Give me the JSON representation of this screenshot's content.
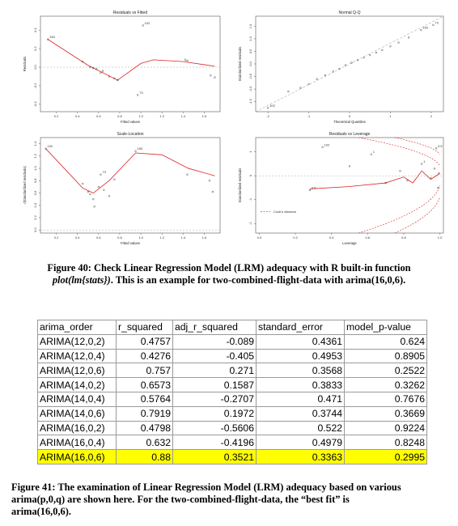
{
  "figure40": {
    "caption_lead": "Figure 40: Check Linear Regression Model (LRM) adequacy with R built-in function",
    "caption_formula": "plot(lm{stats})",
    "caption_tail": ". This is an example for two-combined-flight-data with arima(16,0,6)."
  },
  "chart_data": [
    {
      "type": "scatter",
      "title": "Residuals vs Fitted",
      "xlabel": "Fitted values",
      "ylabel": "Residuals",
      "xticks": [
        "0.2",
        "0.4",
        "0.6",
        "0.8",
        "1.0",
        "1.2",
        "1.4",
        "1.6"
      ],
      "yticks": [
        "-0.4",
        "-0.2",
        "0.0",
        "0.2",
        "0.4"
      ],
      "xlim": [
        0.05,
        1.75
      ],
      "ylim": [
        -0.48,
        0.55
      ],
      "point_labels": [
        "102",
        "150",
        "73"
      ],
      "points": [
        {
          "x": 0.12,
          "y": 0.3
        },
        {
          "x": 0.45,
          "y": 0.06
        },
        {
          "x": 0.52,
          "y": 0.0
        },
        {
          "x": 0.55,
          "y": -0.01
        },
        {
          "x": 0.58,
          "y": -0.02
        },
        {
          "x": 0.62,
          "y": -0.06
        },
        {
          "x": 0.64,
          "y": -0.04
        },
        {
          "x": 0.7,
          "y": -0.1
        },
        {
          "x": 0.75,
          "y": -0.12
        },
        {
          "x": 0.78,
          "y": -0.14
        },
        {
          "x": 0.97,
          "y": -0.3
        },
        {
          "x": 1.02,
          "y": 0.45
        },
        {
          "x": 1.42,
          "y": 0.08
        },
        {
          "x": 1.44,
          "y": 0.07
        },
        {
          "x": 1.66,
          "y": -0.09
        },
        {
          "x": 1.7,
          "y": -0.11
        }
      ],
      "smooth": [
        {
          "x": 0.12,
          "y": 0.3
        },
        {
          "x": 0.5,
          "y": 0.02
        },
        {
          "x": 0.78,
          "y": -0.14
        },
        {
          "x": 1.0,
          "y": 0.04
        },
        {
          "x": 1.12,
          "y": 0.08
        },
        {
          "x": 1.4,
          "y": 0.06
        },
        {
          "x": 1.7,
          "y": 0.01
        }
      ]
    },
    {
      "type": "scatter",
      "title": "Normal Q-Q",
      "xlabel": "Theoretical Quantiles",
      "ylabel": "Standardized residuals",
      "xticks": [
        "-2",
        "-1",
        "0",
        "1",
        "2"
      ],
      "yticks": [
        "-1.5",
        "-1.0",
        "-0.5",
        "0.0",
        "0.5",
        "1.0",
        "1.5"
      ],
      "xlim": [
        -2.3,
        2.3
      ],
      "ylim": [
        -1.9,
        1.9
      ],
      "point_labels": [
        "102",
        "73",
        "150"
      ],
      "points": [
        {
          "x": -2.0,
          "y": -1.75
        },
        {
          "x": -1.5,
          "y": -1.1
        },
        {
          "x": -1.2,
          "y": -0.95
        },
        {
          "x": -1.0,
          "y": -0.8
        },
        {
          "x": -0.8,
          "y": -0.6
        },
        {
          "x": -0.6,
          "y": -0.45
        },
        {
          "x": -0.4,
          "y": -0.3
        },
        {
          "x": -0.25,
          "y": -0.2
        },
        {
          "x": -0.1,
          "y": -0.05
        },
        {
          "x": 0.05,
          "y": 0.05
        },
        {
          "x": 0.2,
          "y": 0.15
        },
        {
          "x": 0.35,
          "y": 0.25
        },
        {
          "x": 0.5,
          "y": 0.35
        },
        {
          "x": 0.65,
          "y": 0.45
        },
        {
          "x": 0.8,
          "y": 0.55
        },
        {
          "x": 1.0,
          "y": 0.7
        },
        {
          "x": 1.2,
          "y": 0.85
        },
        {
          "x": 1.45,
          "y": 1.05
        },
        {
          "x": 1.75,
          "y": 1.35
        },
        {
          "x": 2.05,
          "y": 1.55
        }
      ],
      "reference_line": [
        {
          "x": -2.3,
          "y": -1.9
        },
        {
          "x": 2.3,
          "y": 1.9
        }
      ]
    },
    {
      "type": "scatter",
      "title": "Scale-Location",
      "xlabel": "Fitted values",
      "ylabel": "√|Standardized residuals|",
      "xticks": [
        "0.2",
        "0.4",
        "0.6",
        "0.8",
        "1.0",
        "1.2",
        "1.4",
        "1.6"
      ],
      "yticks": [
        "0.0",
        "0.2",
        "0.4",
        "0.6",
        "0.8",
        "1.0",
        "1.2",
        "1.4"
      ],
      "xlim": [
        0.05,
        1.75
      ],
      "ylim": [
        -0.05,
        1.5
      ],
      "point_labels": [
        "102",
        "150",
        "73"
      ],
      "points": [
        {
          "x": 0.1,
          "y": 1.32
        },
        {
          "x": 0.45,
          "y": 0.75
        },
        {
          "x": 0.5,
          "y": 0.62
        },
        {
          "x": 0.52,
          "y": 0.58
        },
        {
          "x": 0.55,
          "y": 0.5
        },
        {
          "x": 0.56,
          "y": 0.38
        },
        {
          "x": 0.6,
          "y": 0.7
        },
        {
          "x": 0.62,
          "y": 0.9
        },
        {
          "x": 0.65,
          "y": 0.65
        },
        {
          "x": 0.7,
          "y": 0.55
        },
        {
          "x": 0.75,
          "y": 0.82
        },
        {
          "x": 0.95,
          "y": 1.28
        },
        {
          "x": 1.44,
          "y": 0.9
        },
        {
          "x": 1.65,
          "y": 0.8
        },
        {
          "x": 1.68,
          "y": 0.62
        }
      ],
      "smooth": [
        {
          "x": 0.1,
          "y": 1.32
        },
        {
          "x": 0.45,
          "y": 0.68
        },
        {
          "x": 0.55,
          "y": 0.6
        },
        {
          "x": 0.7,
          "y": 0.8
        },
        {
          "x": 0.95,
          "y": 1.25
        },
        {
          "x": 1.2,
          "y": 1.22
        },
        {
          "x": 1.45,
          "y": 1.0
        },
        {
          "x": 1.7,
          "y": 0.88
        }
      ]
    },
    {
      "type": "scatter",
      "title": "Residuals vs Leverage",
      "xlabel": "Leverage",
      "ylabel": "Standardized residuals",
      "xticks": [
        "0.0",
        "0.2",
        "0.4",
        "0.6",
        "0.8",
        "1.0"
      ],
      "yticks": [
        "-2",
        "-1",
        "0",
        "1"
      ],
      "xlim": [
        -0.02,
        1.02
      ],
      "ylim": [
        -2.4,
        1.6
      ],
      "legend": "Cook's distance",
      "point_labels": [
        "102",
        "0.5",
        "1",
        "0.5",
        "1"
      ],
      "points": [
        {
          "x": 0.28,
          "y": -0.6
        },
        {
          "x": 0.35,
          "y": 1.2
        },
        {
          "x": 0.5,
          "y": 0.4
        },
        {
          "x": 0.62,
          "y": 0.9
        },
        {
          "x": 0.7,
          "y": -0.3
        },
        {
          "x": 0.78,
          "y": 0.2
        },
        {
          "x": 0.82,
          "y": -0.2
        },
        {
          "x": 0.9,
          "y": 0.5
        },
        {
          "x": 0.95,
          "y": -0.1
        },
        {
          "x": 0.97,
          "y": 0.3
        },
        {
          "x": 0.98,
          "y": 1.15
        },
        {
          "x": 0.99,
          "y": -0.5
        },
        {
          "x": 0.995,
          "y": 0.1
        }
      ],
      "smooth": [
        {
          "x": 0.28,
          "y": -0.55
        },
        {
          "x": 0.5,
          "y": -0.45
        },
        {
          "x": 0.7,
          "y": -0.3
        },
        {
          "x": 0.8,
          "y": -0.05
        },
        {
          "x": 0.85,
          "y": -0.3
        },
        {
          "x": 0.9,
          "y": 0.2
        },
        {
          "x": 0.95,
          "y": -0.15
        },
        {
          "x": 1.0,
          "y": 0.1
        }
      ]
    },
    {
      "type": "table",
      "columns": [
        "arima_order",
        "r_squared",
        "adj_r_squared",
        "standard_error",
        "model_p-value"
      ],
      "rows": [
        [
          "ARIMA(12,0,2)",
          "0.4757",
          "-0.089",
          "0.4361",
          "0.624"
        ],
        [
          "ARIMA(12,0,4)",
          "0.4276",
          "-0.405",
          "0.4953",
          "0.8905"
        ],
        [
          "ARIMA(12,0,6)",
          "0.757",
          "0.271",
          "0.3568",
          "0.2522"
        ],
        [
          "ARIMA(14,0,2)",
          "0.6573",
          "0.1587",
          "0.3833",
          "0.3262"
        ],
        [
          "ARIMA(14,0,4)",
          "0.5764",
          "-0.2707",
          "0.471",
          "0.7676"
        ],
        [
          "ARIMA(14,0,6)",
          "0.7919",
          "0.1972",
          "0.3744",
          "0.3669"
        ],
        [
          "ARIMA(16,0,2)",
          "0.4798",
          "-0.5606",
          "0.522",
          "0.9224"
        ],
        [
          "ARIMA(16,0,4)",
          "0.632",
          "-0.4196",
          "0.4979",
          "0.8248"
        ],
        [
          "ARIMA(16,0,6)",
          "0.88",
          "0.3521",
          "0.3363",
          "0.2995"
        ]
      ],
      "highlight_row": 8,
      "highlight_color": "#ffff00"
    }
  ],
  "colors": {
    "smooth_line": "#dd2222",
    "reference_line": "#aaaaaa",
    "highlight": "#ffff00"
  },
  "figure41": {
    "caption_line1": "Figure 41: The examination of Linear Regression Model (LRM) adequacy based on various",
    "caption_line2": "arima(p,0,q) are shown here. For the two-combined-flight-data, the “best fit” is",
    "caption_line3": "arima(16,0,6)."
  }
}
